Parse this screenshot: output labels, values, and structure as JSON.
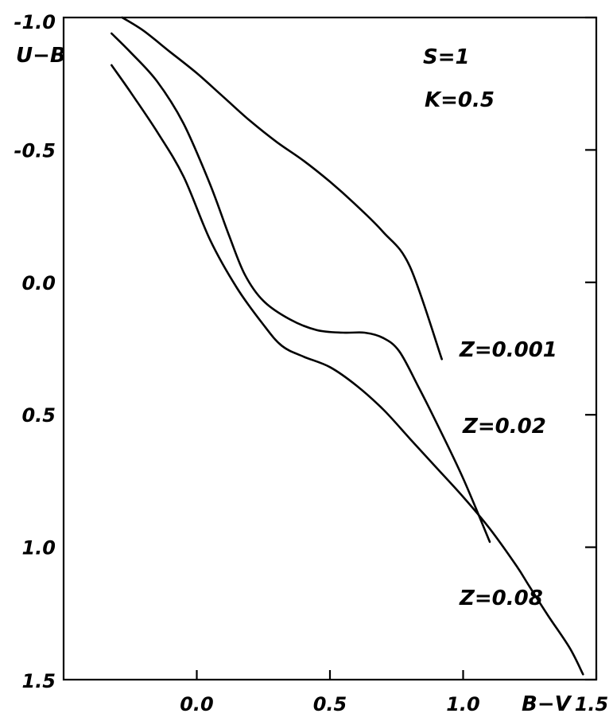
{
  "chart_data": {
    "type": "line",
    "xlabel": "B−V",
    "ylabel": "U−B",
    "xlim": [
      -0.5,
      1.5
    ],
    "ylim": [
      -1.0,
      1.5
    ],
    "y_inverted": true,
    "grid": false,
    "x_ticks": [
      {
        "value": 0.0,
        "label": "0.0"
      },
      {
        "value": 0.5,
        "label": "0.5"
      },
      {
        "value": 1.0,
        "label": "1.0"
      },
      {
        "value": 1.5,
        "label": "1.5"
      }
    ],
    "y_ticks": [
      {
        "value": -1.0,
        "label": "-1.0"
      },
      {
        "value": -0.5,
        "label": "-0.5"
      },
      {
        "value": 0.0,
        "label": "0.0"
      },
      {
        "value": 0.5,
        "label": "0.5"
      },
      {
        "value": 1.0,
        "label": "1.0"
      },
      {
        "value": 1.5,
        "label": "1.5"
      }
    ],
    "annotations": [
      "S=1",
      "K=0.5"
    ],
    "series": [
      {
        "name": "Z=0.001",
        "x": [
          -0.28,
          -0.2,
          -0.1,
          0.0,
          0.1,
          0.2,
          0.3,
          0.4,
          0.5,
          0.6,
          0.7,
          0.8,
          0.92
        ],
        "y": [
          -1.0,
          -0.95,
          -0.87,
          -0.79,
          -0.7,
          -0.61,
          -0.53,
          -0.46,
          -0.38,
          -0.29,
          -0.19,
          -0.06,
          0.29
        ]
      },
      {
        "name": "Z=0.02",
        "x": [
          -0.32,
          -0.25,
          -0.15,
          -0.05,
          0.05,
          0.12,
          0.18,
          0.25,
          0.35,
          0.45,
          0.55,
          0.63,
          0.7,
          0.76,
          0.83,
          0.9,
          1.0,
          1.1
        ],
        "y": [
          -0.94,
          -0.87,
          -0.76,
          -0.6,
          -0.37,
          -0.18,
          -0.03,
          0.07,
          0.14,
          0.18,
          0.19,
          0.19,
          0.21,
          0.26,
          0.39,
          0.53,
          0.74,
          0.98
        ]
      },
      {
        "name": "Z=0.08",
        "x": [
          -0.32,
          -0.25,
          -0.15,
          -0.05,
          0.05,
          0.15,
          0.25,
          0.32,
          0.4,
          0.5,
          0.6,
          0.7,
          0.8,
          0.9,
          1.0,
          1.1,
          1.2,
          1.25,
          1.32,
          1.4,
          1.45
        ],
        "y": [
          -0.82,
          -0.72,
          -0.57,
          -0.4,
          -0.16,
          0.02,
          0.16,
          0.24,
          0.28,
          0.32,
          0.39,
          0.48,
          0.59,
          0.7,
          0.81,
          0.93,
          1.07,
          1.15,
          1.26,
          1.38,
          1.48
        ]
      }
    ]
  }
}
